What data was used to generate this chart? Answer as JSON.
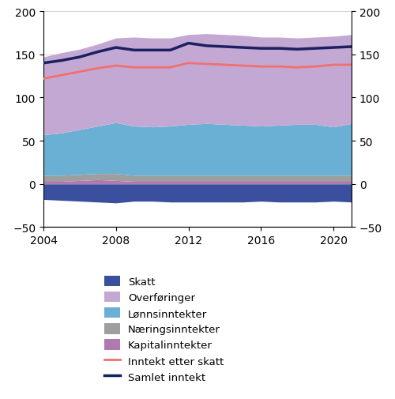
{
  "years": [
    2004,
    2005,
    2006,
    2007,
    2008,
    2009,
    2010,
    2011,
    2012,
    2013,
    2014,
    2015,
    2016,
    2017,
    2018,
    2019,
    2020,
    2021
  ],
  "skatt": [
    -18,
    -19,
    -20,
    -21,
    -22,
    -20,
    -20,
    -21,
    -21,
    -21,
    -21,
    -21,
    -20,
    -21,
    -21,
    -21,
    -20,
    -21
  ],
  "kapitalinntekter": [
    3,
    3,
    4,
    5,
    4,
    3,
    3,
    3,
    3,
    3,
    3,
    3,
    3,
    3,
    3,
    3,
    3,
    3
  ],
  "naringsinntekter": [
    7,
    7,
    7,
    7,
    8,
    7,
    7,
    7,
    7,
    7,
    7,
    7,
    7,
    7,
    7,
    7,
    7,
    7
  ],
  "lonnsinntekter": [
    47,
    49,
    52,
    55,
    59,
    57,
    56,
    57,
    59,
    60,
    59,
    58,
    57,
    58,
    59,
    59,
    56,
    60
  ],
  "overforinger": [
    90,
    93,
    93,
    95,
    98,
    103,
    103,
    102,
    104,
    104,
    104,
    104,
    103,
    102,
    100,
    101,
    105,
    103
  ],
  "inntekt_etter_skatt": [
    122,
    126,
    130,
    134,
    137,
    135,
    135,
    135,
    140,
    139,
    138,
    137,
    136,
    136,
    135,
    136,
    138,
    138
  ],
  "samlet_inntekt": [
    140,
    143,
    147,
    153,
    158,
    155,
    155,
    155,
    163,
    160,
    159,
    158,
    157,
    157,
    156,
    157,
    158,
    159
  ],
  "colors": {
    "skatt": "#3a4f9e",
    "overforinger": "#c4a8d4",
    "lonnsinntekter": "#6ab0d4",
    "naringsinntekter": "#9e9e9e",
    "kapitalinntekter": "#b07ab0",
    "inntekt_etter_skatt": "#f07070",
    "samlet_inntekt": "#1a2060"
  },
  "ylim": [
    -50,
    200
  ],
  "yticks": [
    -50,
    0,
    50,
    100,
    150,
    200
  ],
  "legend_labels": [
    "Skatt",
    "Overføringer",
    "Lønnsinntekter",
    "Næringsinntekter",
    "Kapitalinntekter",
    "Inntekt etter skatt",
    "Samlet inntekt"
  ],
  "xticks": [
    2004,
    2008,
    2012,
    2016,
    2020
  ],
  "figsize": [
    5.0,
    5.06
  ],
  "dpi": 100
}
